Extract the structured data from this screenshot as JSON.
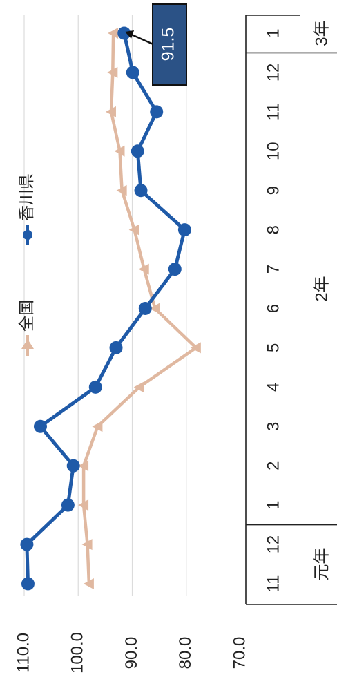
{
  "chart_data": {
    "type": "line",
    "orientation": "rotated-90-clockwise",
    "y_ticks": [
      "70.0",
      "80.0",
      "90.0",
      "100.0",
      "110.0"
    ],
    "ylim": [
      70,
      110
    ],
    "grid": true,
    "legend_position": "top",
    "categories": [
      "11",
      "12",
      "1",
      "2",
      "3",
      "4",
      "5",
      "6",
      "7",
      "8",
      "9",
      "10",
      "11",
      "12",
      "1"
    ],
    "groups": [
      {
        "label": "元年",
        "months": [
          "11",
          "12"
        ]
      },
      {
        "label": "2年",
        "months": [
          "1",
          "2",
          "3",
          "4",
          "5",
          "6",
          "7",
          "8",
          "9",
          "10",
          "11",
          "12"
        ]
      },
      {
        "label": "3年",
        "months": [
          "1"
        ]
      }
    ],
    "series": [
      {
        "name": "全国",
        "color": "#e0b8a0",
        "marker": "triangle",
        "values": [
          98.0,
          98.3,
          99.0,
          99.0,
          96.4,
          88.7,
          78.2,
          85.8,
          87.8,
          89.6,
          91.9,
          92.3,
          93.9,
          93.6,
          93.5
        ]
      },
      {
        "name": "香川県",
        "color": "#1f5aa8",
        "marker": "circle",
        "values": [
          109.3,
          109.5,
          101.9,
          100.9,
          107.0,
          96.8,
          93.0,
          87.6,
          82.1,
          80.3,
          88.4,
          89.0,
          85.5,
          89.9,
          91.5
        ]
      }
    ],
    "callout": {
      "text": "91.5",
      "series": "香川県",
      "index": 14
    }
  }
}
